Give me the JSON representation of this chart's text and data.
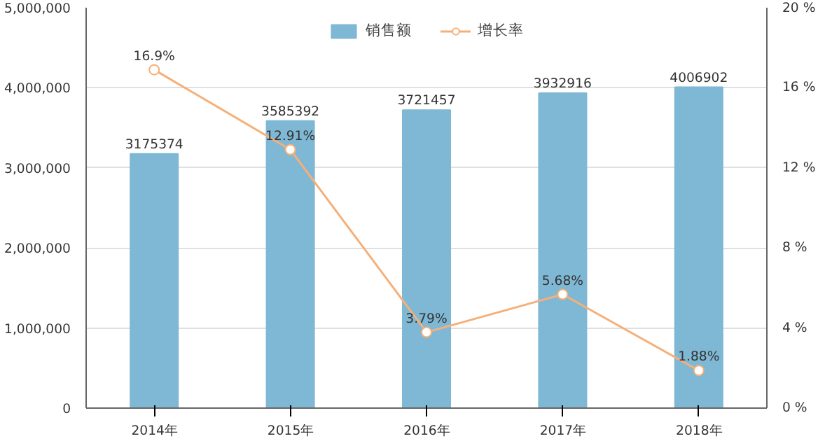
{
  "chart_data": {
    "type": "bar",
    "categories": [
      "2014年",
      "2015年",
      "2016年",
      "2017年",
      "2018年"
    ],
    "series": [
      {
        "name": "销售额",
        "color": "#7fb8d4",
        "values": [
          3175374,
          3585392,
          3721457,
          3932916,
          4006902
        ],
        "value_labels": [
          "3175374",
          "3585392",
          "3721457",
          "3932916",
          "4006902"
        ]
      },
      {
        "name": "增长率",
        "type": "line",
        "axis": "y2",
        "color": "#f5b07a",
        "values": [
          16.9,
          12.91,
          3.79,
          5.68,
          1.88
        ],
        "value_labels": [
          "16.9%",
          "12.91%",
          "3.79%",
          "5.68%",
          "1.88%"
        ]
      }
    ],
    "ylim": [
      0,
      5000000
    ],
    "yticks": [
      {
        "value": 0,
        "label": "0"
      },
      {
        "value": 1000000,
        "label": "1,000,000"
      },
      {
        "value": 2000000,
        "label": "2,000,000"
      },
      {
        "value": 3000000,
        "label": "3,000,000"
      },
      {
        "value": 4000000,
        "label": "4,000,000"
      },
      {
        "value": 5000000,
        "label": "5,000,000"
      }
    ],
    "y2lim": [
      0,
      20
    ],
    "y2ticks": [
      {
        "value": 0,
        "label": "0 %"
      },
      {
        "value": 4,
        "label": "4 %"
      },
      {
        "value": 8,
        "label": "8 %"
      },
      {
        "value": 12,
        "label": "12 %"
      },
      {
        "value": 16,
        "label": "16 %"
      },
      {
        "value": 20,
        "label": "20 %"
      }
    ],
    "grid": "y",
    "legend": "top",
    "marker": "circle",
    "line_style": "solid"
  }
}
